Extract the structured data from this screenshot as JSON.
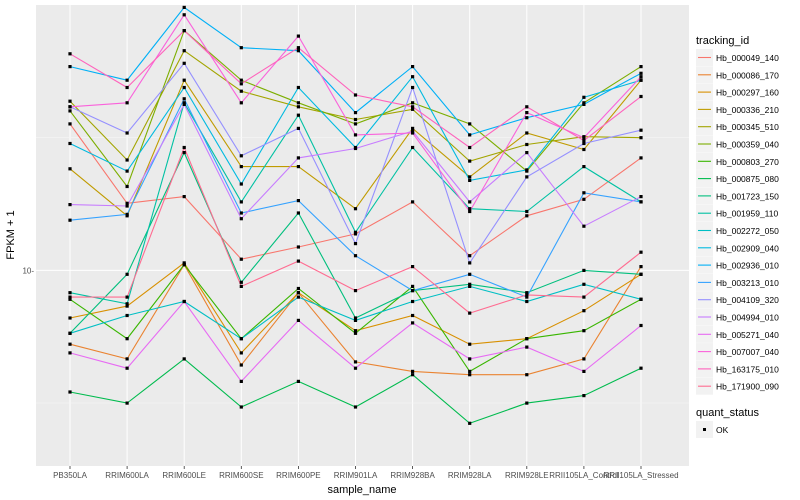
{
  "chart_data": {
    "type": "line",
    "xlabel": "sample_name",
    "ylabel": "FPKM + 1",
    "y_scale": "log10",
    "ylim": [
      3.6,
      40
    ],
    "yticks": [
      10
    ],
    "ytick_labels": [
      "10-"
    ],
    "grid": true,
    "legend_position": "right",
    "categories": [
      "PB350LA",
      "RRIM600LA",
      "RRIM600LE",
      "RRIM600SE",
      "RRIM600PE",
      "RRIM901LA",
      "RRIM928BA",
      "RRIM928LA",
      "RRIM928LE",
      "RRII105LA_Control",
      "RRII105LA_Stressed"
    ],
    "legend": {
      "title": "tracking_id",
      "shape_title": "quant_status",
      "shape_label": "OK"
    },
    "series": [
      {
        "name": "Hb_000049_140",
        "color": "#F8766D",
        "values": [
          21.5,
          14.2,
          14.7,
          10.6,
          11.3,
          12.1,
          14.3,
          10.8,
          13.3,
          14.5,
          18.0
        ]
      },
      {
        "name": "Hb_000086_170",
        "color": "#EA8331",
        "values": [
          6.8,
          6.3,
          10.3,
          6.1,
          8.9,
          6.2,
          5.9,
          5.8,
          5.8,
          6.3,
          10.2
        ]
      },
      {
        "name": "Hb_000297_160",
        "color": "#D89000",
        "values": [
          7.8,
          8.3,
          10.4,
          6.5,
          8.9,
          7.3,
          7.9,
          6.8,
          7.0,
          8.1,
          9.8
        ]
      },
      {
        "name": "Hb_000336_210",
        "color": "#C09B00",
        "values": [
          17.0,
          13.3,
          27.0,
          17.2,
          17.2,
          13.8,
          21.0,
          16.3,
          20.5,
          18.8,
          27.0
        ]
      },
      {
        "name": "Hb_000345_510",
        "color": "#A3A500",
        "values": [
          24.2,
          17.8,
          31.5,
          25.5,
          23.5,
          22.0,
          23.2,
          17.7,
          19.3,
          20.1,
          20.0
        ]
      },
      {
        "name": "Hb_000359_040",
        "color": "#7CAE00",
        "values": [
          23.0,
          15.5,
          35.0,
          27.0,
          24.0,
          21.5,
          24.0,
          21.5,
          16.8,
          24.0,
          29.0
        ]
      },
      {
        "name": "Hb_000803_270",
        "color": "#39B600",
        "values": [
          8.6,
          7.0,
          10.3,
          7.0,
          9.1,
          7.2,
          9.2,
          5.9,
          7.0,
          7.3,
          8.6
        ]
      },
      {
        "name": "Hb_000875_080",
        "color": "#00BB4E",
        "values": [
          5.3,
          5.0,
          6.3,
          4.9,
          5.6,
          4.9,
          5.8,
          4.5,
          5.0,
          5.2,
          6.0
        ]
      },
      {
        "name": "Hb_001723_150",
        "color": "#00BF7D",
        "values": [
          7.2,
          9.8,
          18.5,
          9.4,
          13.5,
          7.8,
          9.0,
          9.3,
          8.9,
          10.0,
          9.8
        ]
      },
      {
        "name": "Hb_001959_110",
        "color": "#00C1A3",
        "values": [
          8.9,
          8.4,
          24.0,
          14.3,
          22.5,
          12.2,
          19.0,
          13.8,
          13.6,
          17.2,
          14.3
        ]
      },
      {
        "name": "Hb_002272_050",
        "color": "#00BFC4",
        "values": [
          7.2,
          7.9,
          8.5,
          7.0,
          8.7,
          7.7,
          8.5,
          9.2,
          8.5,
          9.3,
          8.6
        ]
      },
      {
        "name": "Hb_002909_040",
        "color": "#00BAE0",
        "values": [
          19.4,
          16.8,
          26.0,
          15.7,
          26.0,
          19.0,
          27.5,
          16.0,
          16.9,
          24.7,
          27.0
        ]
      },
      {
        "name": "Hb_002936_010",
        "color": "#00B0F6",
        "values": [
          29.0,
          27.0,
          39.5,
          32.0,
          31.5,
          22.8,
          29.0,
          20.3,
          22.2,
          23.8,
          28.0
        ]
      },
      {
        "name": "Hb_003213_010",
        "color": "#35A2FF",
        "values": [
          13.0,
          13.4,
          24.5,
          13.5,
          14.4,
          10.8,
          9.0,
          9.8,
          8.7,
          15.0,
          14.3
        ]
      },
      {
        "name": "Hb_004109_320",
        "color": "#9590FF",
        "values": [
          23.5,
          20.5,
          29.5,
          18.2,
          21.0,
          11.5,
          26.0,
          10.4,
          16.3,
          19.4,
          20.8
        ]
      },
      {
        "name": "Hb_004994_010",
        "color": "#C77CFF",
        "values": [
          14.1,
          14.0,
          23.8,
          13.1,
          18.0,
          18.9,
          20.7,
          14.3,
          18.5,
          12.6,
          14.7
        ]
      },
      {
        "name": "Hb_005271_040",
        "color": "#E76BF3",
        "values": [
          6.5,
          6.0,
          8.5,
          5.6,
          7.7,
          6.0,
          7.6,
          6.3,
          6.7,
          5.9,
          7.5
        ]
      },
      {
        "name": "Hb_007007_040",
        "color": "#FA62DB",
        "values": [
          23.5,
          24.0,
          38.0,
          24.0,
          34.0,
          20.3,
          20.5,
          13.6,
          22.8,
          20.0,
          27.5
        ]
      },
      {
        "name": "Hb_163175_010",
        "color": "#FF62BC",
        "values": [
          31.0,
          26.0,
          35.0,
          26.5,
          32.0,
          25.0,
          23.5,
          19.0,
          23.5,
          19.7,
          24.8
        ]
      },
      {
        "name": "Hb_171900_090",
        "color": "#FF6C91",
        "values": [
          8.7,
          8.7,
          19.0,
          9.2,
          10.5,
          9.0,
          10.2,
          8.0,
          8.8,
          8.7,
          11.0
        ]
      }
    ]
  }
}
